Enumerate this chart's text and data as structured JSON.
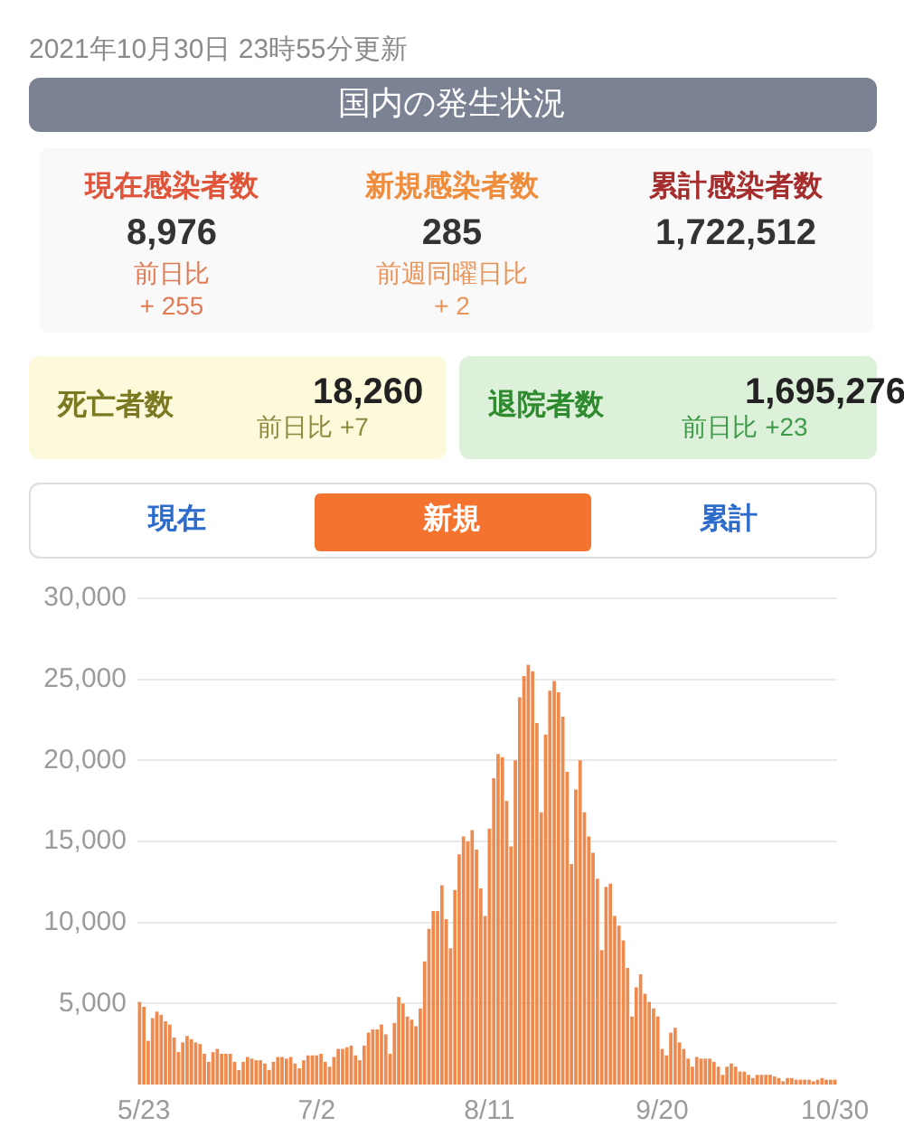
{
  "chart_data": [
    {
      "type": "other",
      "subtitle": "2021年10月30日 23時55分更新",
      "title": "国内の発生状況",
      "annotations": [
        "現在感染者数",
        "8,976",
        "前日比",
        "+ 255",
        "新規感染者数",
        "285",
        "前週同曜日比",
        "+ 2",
        "累計感染者数",
        "1,722,512",
        "死亡者数",
        "18,260",
        "前日比 +7",
        "退院者数",
        "1,695,276",
        "前日比 +23",
        "現在",
        "新規",
        "累計"
      ]
    },
    {
      "type": "bar",
      "categories": [
        null,
        "5/23",
        null,
        null,
        null,
        null,
        null,
        null,
        null,
        null,
        null,
        null,
        null,
        null,
        null,
        null,
        null,
        null,
        null,
        null,
        null,
        null,
        null,
        null,
        null,
        null,
        null,
        null,
        null,
        null,
        null,
        null,
        null,
        null,
        null,
        null,
        null,
        null,
        null,
        null,
        null,
        "7/2",
        null,
        null,
        null,
        null,
        null,
        null,
        null,
        null,
        null,
        null,
        null,
        null,
        null,
        null,
        null,
        null,
        null,
        null,
        null,
        null,
        null,
        null,
        null,
        null,
        null,
        null,
        null,
        null,
        null,
        null,
        null,
        null,
        null,
        null,
        null,
        null,
        null,
        null,
        null,
        "8/11",
        null,
        null,
        null,
        null,
        null,
        null,
        null,
        null,
        null,
        null,
        null,
        null,
        null,
        null,
        null,
        null,
        null,
        null,
        null,
        null,
        null,
        null,
        null,
        null,
        null,
        null,
        null,
        null,
        null,
        null,
        null,
        null,
        null,
        null,
        null,
        null,
        null,
        null,
        null,
        "9/20",
        null,
        null,
        null,
        null,
        null,
        null,
        null,
        null,
        null,
        null,
        null,
        null,
        null,
        null,
        null,
        null,
        null,
        null,
        null,
        null,
        null,
        null,
        null,
        null,
        null,
        null,
        null,
        null,
        null,
        null,
        null,
        null,
        null,
        null,
        null,
        null,
        null,
        null,
        null,
        "10/30"
      ],
      "values": [
        5100,
        4800,
        2700,
        4100,
        4500,
        4300,
        3900,
        3700,
        2900,
        2000,
        2600,
        3000,
        2800,
        2600,
        2500,
        1900,
        1400,
        2000,
        2200,
        1900,
        1900,
        1900,
        1400,
        900,
        1400,
        1700,
        1600,
        1500,
        1500,
        1300,
        900,
        1400,
        1700,
        1700,
        1600,
        1700,
        1300,
        1000,
        1500,
        1800,
        1800,
        1800,
        1900,
        1400,
        1100,
        1700,
        2200,
        2200,
        2300,
        2400,
        1800,
        1500,
        2400,
        3200,
        3400,
        3400,
        3700,
        3100,
        1900,
        3800,
        5400,
        5000,
        4200,
        4000,
        3600,
        4700,
        7600,
        9600,
        10700,
        10700,
        12300,
        10200,
        8400,
        12000,
        14200,
        15300,
        15000,
        15700,
        14500,
        12100,
        10400,
        15800,
        18900,
        20400,
        20200,
        17500,
        14700,
        20000,
        23900,
        25200,
        25900,
        25500,
        22300,
        16800,
        21600,
        24300,
        24900,
        24200,
        22700,
        19300,
        13600,
        18200,
        20000,
        16800,
        15300,
        14300,
        12700,
        8300,
        12200,
        12400,
        10400,
        9800,
        8900,
        7200,
        4200,
        6000,
        6800,
        5600,
        5100,
        4700,
        4200,
        2200,
        1800,
        3200,
        3500,
        2600,
        2200,
        1600,
        1100,
        1700,
        1600,
        1600,
        1600,
        1400,
        1100,
        600,
        1100,
        1300,
        1100,
        800,
        800,
        600,
        400,
        600,
        600,
        600,
        600,
        500,
        400,
        200,
        400,
        400,
        300,
        300,
        300,
        300,
        200,
        300,
        400,
        300,
        300,
        300
      ],
      "color": "#ef8a4f",
      "ylim": [
        0,
        30000
      ],
      "yticks": [
        {
          "value": 5000,
          "label": "5,000"
        },
        {
          "value": 10000,
          "label": "10,000"
        },
        {
          "value": 15000,
          "label": "15,000"
        },
        {
          "value": 20000,
          "label": "20,000"
        },
        {
          "value": 25000,
          "label": "25,000"
        },
        {
          "value": 30000,
          "label": "30,000"
        }
      ],
      "grid": "y"
    }
  ]
}
